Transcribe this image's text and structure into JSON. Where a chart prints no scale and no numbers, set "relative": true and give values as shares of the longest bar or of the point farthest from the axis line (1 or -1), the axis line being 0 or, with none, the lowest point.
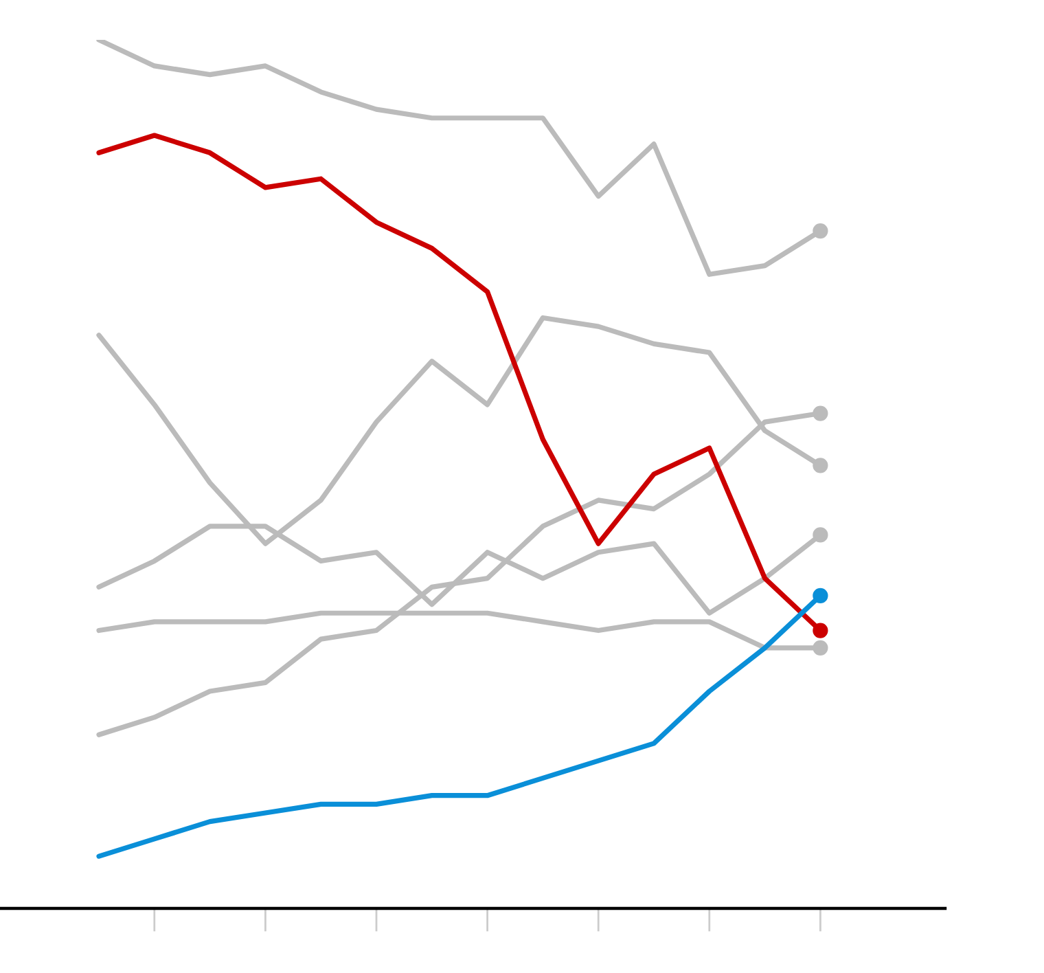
{
  "chart_data": {
    "type": "line",
    "relative": true,
    "line_style": "solid",
    "grid": false,
    "categories": [
      null,
      null,
      null,
      null,
      null,
      null,
      null,
      null,
      null,
      null,
      null,
      null,
      null,
      null
    ],
    "series": [
      {
        "color": "#bbbbbb",
        "values": [
          1.0,
          0.97,
          0.96,
          0.97,
          0.94,
          0.92,
          0.91,
          0.91,
          0.91,
          0.82,
          0.88,
          0.73,
          0.74,
          0.78
        ]
      },
      {
        "color": "#bbbbbb",
        "values": [
          0.66,
          0.58,
          0.49,
          0.42,
          0.47,
          0.56,
          0.63,
          0.58,
          0.68,
          0.67,
          0.65,
          0.64,
          0.55,
          0.51
        ]
      },
      {
        "color": "#bbbbbb",
        "values": [
          0.37,
          0.4,
          0.44,
          0.44,
          0.4,
          0.41,
          0.35,
          0.41,
          0.38,
          0.41,
          0.42,
          0.34,
          0.38,
          0.43
        ]
      },
      {
        "color": "#bbbbbb",
        "values": [
          0.2,
          0.22,
          0.25,
          0.26,
          0.31,
          0.32,
          0.37,
          0.38,
          0.44,
          0.47,
          0.46,
          0.5,
          0.56,
          0.57
        ]
      },
      {
        "color": "#bbbbbb",
        "values": [
          0.32,
          0.33,
          0.33,
          0.33,
          0.34,
          0.34,
          0.34,
          0.34,
          0.33,
          0.32,
          0.33,
          0.33,
          0.3,
          0.3
        ]
      },
      {
        "color": "#cc0000",
        "values": [
          0.87,
          0.89,
          0.87,
          0.83,
          0.84,
          0.79,
          0.76,
          0.71,
          0.54,
          0.42,
          0.5,
          0.53,
          0.38,
          0.32
        ]
      },
      {
        "color": "#0a8fd8",
        "values": [
          0.06,
          0.08,
          0.1,
          0.11,
          0.12,
          0.12,
          0.13,
          0.13,
          0.15,
          0.17,
          0.19,
          0.25,
          0.3,
          0.36
        ]
      }
    ]
  }
}
